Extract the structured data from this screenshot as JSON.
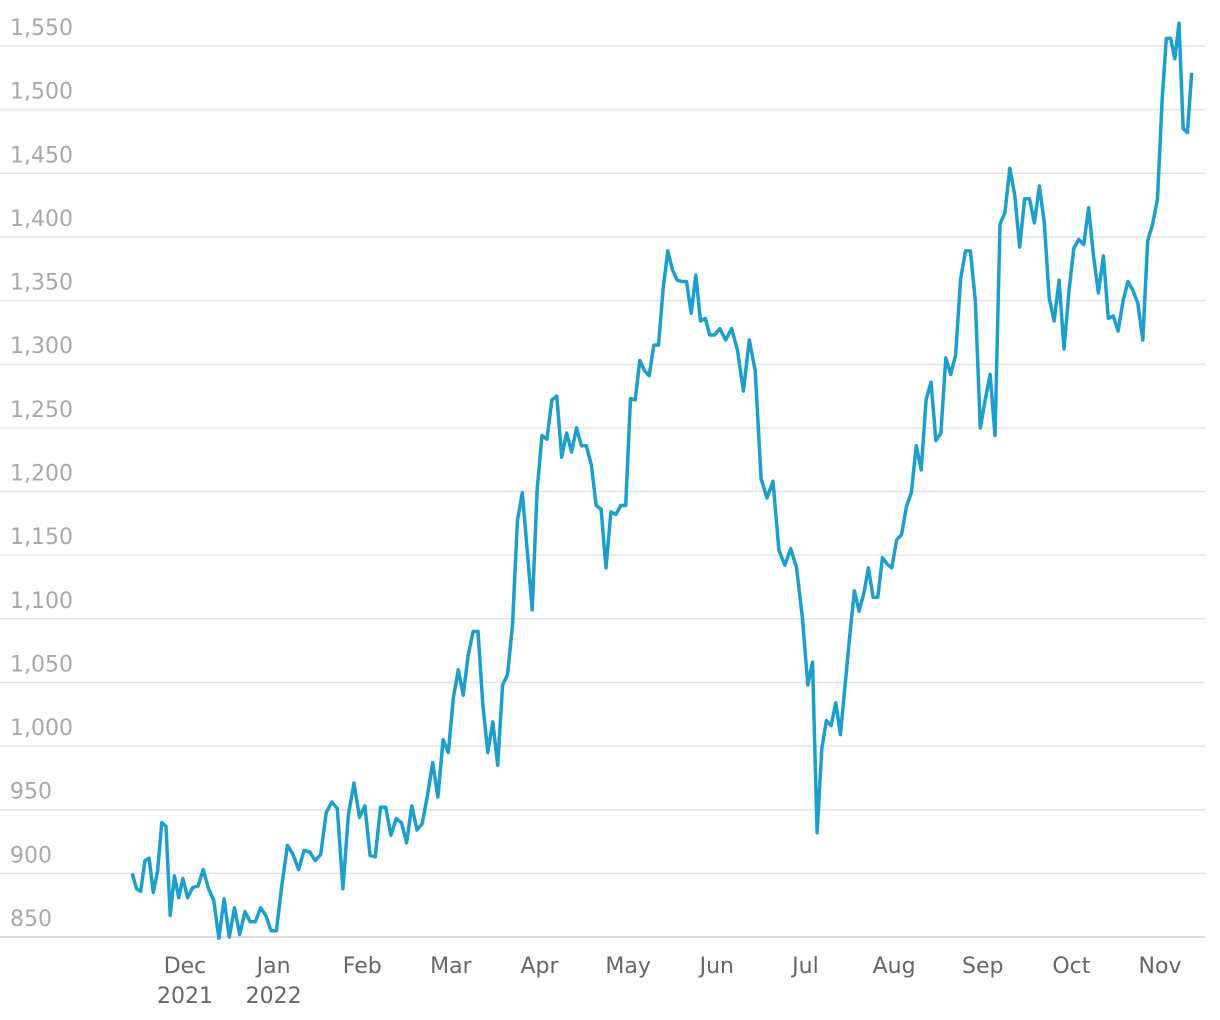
{
  "chart_data": {
    "type": "line",
    "color": "#1d9fcc",
    "grid": true,
    "ylim": [
      845,
      1572
    ],
    "yticks": [
      850,
      900,
      950,
      {
        "value": 1000,
        "label": "1,000"
      },
      {
        "value": 1050,
        "label": "1,050"
      },
      {
        "value": 1100,
        "label": "1,100"
      },
      {
        "value": 1150,
        "label": "1,150"
      },
      {
        "value": 1200,
        "label": "1,200"
      },
      {
        "value": 1250,
        "label": "1,250"
      },
      {
        "value": 1300,
        "label": "1,300"
      },
      {
        "value": 1350,
        "label": "1,350"
      },
      {
        "value": 1400,
        "label": "1,400"
      },
      {
        "value": 1450,
        "label": "1,450"
      },
      {
        "value": 1500,
        "label": "1,500"
      },
      {
        "value": 1550,
        "label": "1,550"
      }
    ],
    "xticks": [
      {
        "value": "2021-12",
        "label": "Dec\n2021"
      },
      {
        "value": "2022-01",
        "label": "Jan\n2022"
      },
      {
        "value": "2022-02",
        "label": "Feb"
      },
      {
        "value": "2022-03",
        "label": "Mar"
      },
      {
        "value": "2022-04",
        "label": "Apr"
      },
      {
        "value": "2022-05",
        "label": "May"
      },
      {
        "value": "2022-06",
        "label": "Jun"
      },
      {
        "value": "2022-07",
        "label": "Jul"
      },
      {
        "value": "2022-08",
        "label": "Aug"
      },
      {
        "value": "2022-09",
        "label": "Sep"
      },
      {
        "value": "2022-10",
        "label": "Oct"
      },
      {
        "value": "2022-11",
        "label": "Nov"
      }
    ],
    "x": [
      "2021-11",
      "2021-11",
      "2021-11",
      "2021-11",
      "2021-11",
      "2021-11",
      "2021-11",
      "2021-11",
      "2021-11",
      "2021-11",
      "2021-11",
      "2021-11",
      "2021-11",
      "2021-12",
      "2021-12",
      "2021-12",
      "2021-12",
      "2021-12",
      "2021-12",
      "2021-12",
      "2021-12",
      "2021-12",
      "2021-12",
      "2021-12",
      "2021-12",
      "2021-12",
      "2021-12",
      "2021-12",
      "2021-12",
      "2021-12",
      "2022-01",
      "2022-01",
      "2022-01",
      "2022-01",
      "2022-01",
      "2022-01",
      "2022-01",
      "2022-01",
      "2022-01",
      "2022-01",
      "2022-01",
      "2022-01",
      "2022-01",
      "2022-01",
      "2022-01",
      "2022-01",
      "2022-02",
      "2022-02",
      "2022-02",
      "2022-02",
      "2022-02",
      "2022-02",
      "2022-02",
      "2022-02",
      "2022-02",
      "2022-02",
      "2022-02",
      "2022-02",
      "2022-02",
      "2022-02",
      "2022-02",
      "2022-02",
      "2022-02",
      "2022-03",
      "2022-03",
      "2022-03",
      "2022-03",
      "2022-03",
      "2022-03",
      "2022-03",
      "2022-03",
      "2022-03",
      "2022-03",
      "2022-03",
      "2022-03",
      "2022-03",
      "2022-03",
      "2022-03",
      "2022-03",
      "2022-03",
      "2022-03",
      "2022-04",
      "2022-04",
      "2022-04",
      "2022-04",
      "2022-04",
      "2022-04",
      "2022-04",
      "2022-04",
      "2022-04",
      "2022-04",
      "2022-04",
      "2022-04",
      "2022-04",
      "2022-04",
      "2022-04",
      "2022-04",
      "2022-04",
      "2022-04",
      "2022-05",
      "2022-05",
      "2022-05",
      "2022-05",
      "2022-05",
      "2022-05",
      "2022-05",
      "2022-05",
      "2022-05",
      "2022-05",
      "2022-05",
      "2022-05",
      "2022-05",
      "2022-05",
      "2022-05",
      "2022-05",
      "2022-05",
      "2022-05",
      "2022-05",
      "2022-06",
      "2022-06",
      "2022-06",
      "2022-06",
      "2022-06",
      "2022-06",
      "2022-06",
      "2022-06",
      "2022-06",
      "2022-06",
      "2022-06",
      "2022-06",
      "2022-06",
      "2022-06",
      "2022-06",
      "2022-07",
      "2022-07",
      "2022-07",
      "2022-07",
      "2022-07",
      "2022-07",
      "2022-07",
      "2022-07",
      "2022-07",
      "2022-07",
      "2022-07",
      "2022-07",
      "2022-07",
      "2022-07",
      "2022-07",
      "2022-07",
      "2022-07",
      "2022-07",
      "2022-07",
      "2022-08",
      "2022-08",
      "2022-08",
      "2022-08",
      "2022-08",
      "2022-08",
      "2022-08",
      "2022-08",
      "2022-08",
      "2022-08",
      "2022-08",
      "2022-08",
      "2022-08",
      "2022-08",
      "2022-08",
      "2022-08",
      "2022-08",
      "2022-08",
      "2022-09",
      "2022-09",
      "2022-09",
      "2022-09",
      "2022-09",
      "2022-09",
      "2022-09",
      "2022-09",
      "2022-09",
      "2022-09",
      "2022-09",
      "2022-09",
      "2022-09",
      "2022-09",
      "2022-09",
      "2022-09",
      "2022-09",
      "2022-09",
      "2022-10",
      "2022-10",
      "2022-10",
      "2022-10",
      "2022-10",
      "2022-10",
      "2022-10",
      "2022-10",
      "2022-10",
      "2022-10",
      "2022-10",
      "2022-10",
      "2022-10",
      "2022-10",
      "2022-10",
      "2022-10",
      "2022-10",
      "2022-10",
      "2022-11",
      "2022-11",
      "2022-11",
      "2022-11",
      "2022-11",
      "2022-11",
      "2022-11",
      "2022-11"
    ],
    "values": [
      900,
      888,
      886,
      910,
      912,
      885,
      902,
      940,
      937,
      867,
      898,
      881,
      896,
      881,
      889,
      890,
      903,
      888,
      879,
      849,
      880,
      850,
      873,
      852,
      870,
      862,
      862,
      873,
      867,
      855,
      855,
      891,
      922,
      915,
      903,
      918,
      917,
      910,
      915,
      948,
      956,
      951,
      888,
      946,
      971,
      944,
      953,
      914,
      913,
      952,
      952,
      930,
      943,
      940,
      924,
      953,
      934,
      939,
      961,
      987,
      960,
      1005,
      995,
      1038,
      1060,
      1040,
      1071,
      1090,
      1090,
      1032,
      995,
      1019,
      985,
      1048,
      1056,
      1095,
      1177,
      1199,
      1154,
      1107,
      1201,
      1244,
      1241,
      1272,
      1275,
      1227,
      1246,
      1231,
      1250,
      1236,
      1236,
      1221,
      1189,
      1186,
      1140,
      1184,
      1182,
      1189,
      1189,
      1273,
      1272,
      1303,
      1295,
      1291,
      1315,
      1315,
      1360,
      1389,
      1374,
      1366,
      1365,
      1365,
      1340,
      1370,
      1334,
      1336,
      1323,
      1323,
      1328,
      1319,
      1328,
      1311,
      1279,
      1319,
      1295,
      1210,
      1195,
      1208,
      1154,
      1142,
      1155,
      1140,
      1100,
      1048,
      1066,
      932,
      998,
      1020,
      1016,
      1034,
      1009,
      1048,
      1087,
      1122,
      1106,
      1120,
      1140,
      1117,
      1117,
      1148,
      1143,
      1140,
      1162,
      1166,
      1188,
      1199,
      1236,
      1217,
      1272,
      1286,
      1240,
      1246,
      1305,
      1292,
      1307,
      1367,
      1389,
      1389,
      1350,
      1250,
      1272,
      1292,
      1244,
      1410,
      1419,
      1454,
      1433,
      1392,
      1430,
      1430,
      1411,
      1440,
      1411,
      1352,
      1334,
      1366,
      1312,
      1357,
      1391,
      1398,
      1394,
      1423,
      1385,
      1356,
      1385,
      1336,
      1338,
      1326,
      1350,
      1365,
      1358,
      1348,
      1319,
      1397,
      1410,
      1430,
      1507,
      1556,
      1556,
      1540,
      1568,
      1485,
      1482,
      1529
    ]
  }
}
